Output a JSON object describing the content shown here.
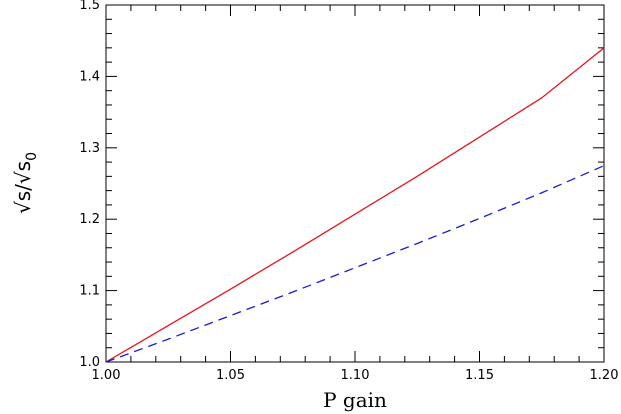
{
  "chart_data": {
    "type": "line",
    "title": "",
    "xlabel": "P gain",
    "ylabel": {
      "main": "√s/√s",
      "subscript": "0"
    },
    "xlim": [
      1.0,
      1.2
    ],
    "ylim": [
      1.0,
      1.5
    ],
    "x_ticks": [
      "1.00",
      "1.05",
      "1.10",
      "1.15",
      "1.20"
    ],
    "y_ticks": [
      "1.0",
      "1.1",
      "1.2",
      "1.3",
      "1.4",
      "1.5"
    ],
    "grid": false,
    "legend": "none",
    "series": [
      {
        "style": "solid",
        "color": "#e8141c",
        "x": [
          1.0,
          1.025,
          1.05,
          1.075,
          1.1,
          1.125,
          1.15,
          1.175,
          1.2
        ],
        "y": [
          1.0,
          1.051,
          1.102,
          1.154,
          1.207,
          1.26,
          1.315,
          1.37,
          1.44
        ]
      },
      {
        "style": "dashed",
        "color": "#1a1ad6",
        "x": [
          1.0,
          1.025,
          1.05,
          1.075,
          1.1,
          1.125,
          1.15,
          1.175,
          1.2
        ],
        "y": [
          1.0,
          1.032,
          1.065,
          1.098,
          1.132,
          1.166,
          1.201,
          1.237,
          1.275
        ]
      }
    ]
  }
}
